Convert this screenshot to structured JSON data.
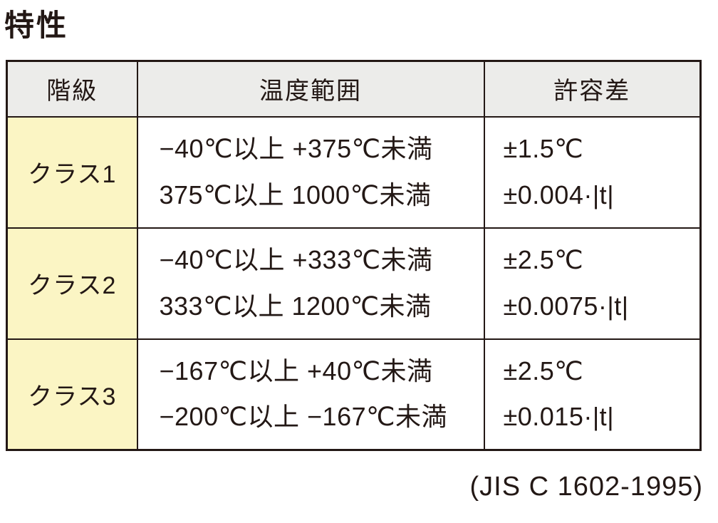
{
  "page": {
    "title": "特性",
    "source": "(JIS C 1602-1995)"
  },
  "table": {
    "headers": [
      "階級",
      "温度範囲",
      "許容差"
    ],
    "rows": [
      {
        "class": "クラス1",
        "range_line1": "−40℃以上 +375℃未満",
        "range_line2": "375℃以上 1000℃未満",
        "tolerance_line1": "±1.5℃",
        "tolerance_line2": "±0.004·|t|"
      },
      {
        "class": "クラス2",
        "range_line1": "−40℃以上 +333℃未満",
        "range_line2": "333℃以上 1200℃未満",
        "tolerance_line1": "±2.5℃",
        "tolerance_line2": "±0.0075·|t|"
      },
      {
        "class": "クラス3",
        "range_line1": "−167℃以上 +40℃未満",
        "range_line2": "−200℃以上 −167℃未満",
        "tolerance_line1": "±2.5℃",
        "tolerance_line2": "±0.015·|t|"
      }
    ]
  },
  "colors": {
    "class_cell_bg": "#FBF5C4",
    "header_bg": "#ECECEA",
    "border": "#231815",
    "text": "#231815",
    "page_bg": "#FFFFFF"
  }
}
